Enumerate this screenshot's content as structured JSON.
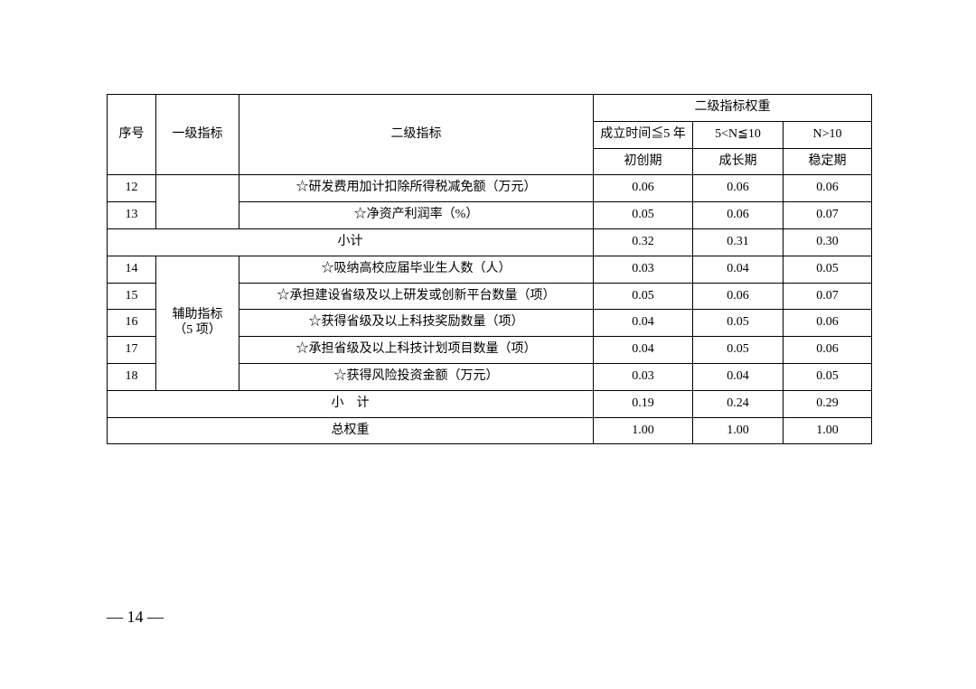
{
  "table": {
    "headers": {
      "seq": "序号",
      "cat": "一级指标",
      "ind": "二级指标",
      "weight_group": "二级指标权重",
      "period1_top": "成立时间≦5 年",
      "period2_top": "5<N≦10",
      "period3_top": "N>10",
      "period1_bot": "初创期",
      "period2_bot": "成长期",
      "period3_bot": "稳定期"
    },
    "rows_a": [
      {
        "seq": "12",
        "ind": "☆研发费用加计扣除所得税减免额（万元）",
        "w1": "0.06",
        "w2": "0.06",
        "w3": "0.06"
      },
      {
        "seq": "13",
        "ind": "☆净资产利润率（%）",
        "w1": "0.05",
        "w2": "0.06",
        "w3": "0.07"
      }
    ],
    "subtotal_a": {
      "label": "小计",
      "w1": "0.32",
      "w2": "0.31",
      "w3": "0.30"
    },
    "cat_b": {
      "line1": "辅助指标",
      "line2": "（5 项）"
    },
    "rows_b": [
      {
        "seq": "14",
        "ind": "☆吸纳高校应届毕业生人数（人）",
        "w1": "0.03",
        "w2": "0.04",
        "w3": "0.05"
      },
      {
        "seq": "15",
        "ind": "☆承担建设省级及以上研发或创新平台数量（项）",
        "w1": "0.05",
        "w2": "0.06",
        "w3": "0.07"
      },
      {
        "seq": "16",
        "ind": "☆获得省级及以上科技奖励数量（项）",
        "w1": "0.04",
        "w2": "0.05",
        "w3": "0.06"
      },
      {
        "seq": "17",
        "ind": "☆承担省级及以上科技计划项目数量（项）",
        "w1": "0.04",
        "w2": "0.05",
        "w3": "0.06"
      },
      {
        "seq": "18",
        "ind": "☆获得风险投资金额（万元）",
        "w1": "0.03",
        "w2": "0.04",
        "w3": "0.05"
      }
    ],
    "subtotal_b": {
      "label": "小　计",
      "w1": "0.19",
      "w2": "0.24",
      "w3": "0.29"
    },
    "total": {
      "label": "总权重",
      "w1": "1.00",
      "w2": "1.00",
      "w3": "1.00"
    }
  },
  "page_number": "—  14  —"
}
